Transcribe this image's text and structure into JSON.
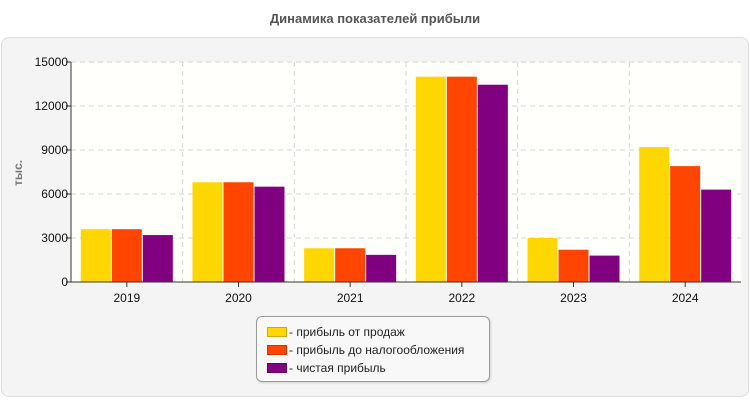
{
  "chart_data": {
    "type": "bar",
    "title": "Динамика показателей прибыли",
    "ylabel": "тыс.",
    "xlabel": "",
    "categories": [
      "2019",
      "2020",
      "2021",
      "2022",
      "2023",
      "2024"
    ],
    "series": [
      {
        "name": "- прибыль от продаж",
        "color": "#FFD700",
        "values": [
          3600,
          6800,
          2300,
          14000,
          3000,
          9200
        ]
      },
      {
        "name": "- прибыль до налогообложения",
        "color": "#FF4500",
        "values": [
          3600,
          6800,
          2300,
          14000,
          2200,
          7900
        ]
      },
      {
        "name": "- чистая прибыль",
        "color": "#800080",
        "values": [
          3200,
          6500,
          1850,
          13450,
          1800,
          6300
        ]
      }
    ],
    "yticks": [
      "0",
      "3000",
      "6000",
      "9000",
      "12000",
      "15000"
    ],
    "ylim": [
      0,
      15000
    ],
    "grid": true,
    "legend_position": "bottom"
  }
}
